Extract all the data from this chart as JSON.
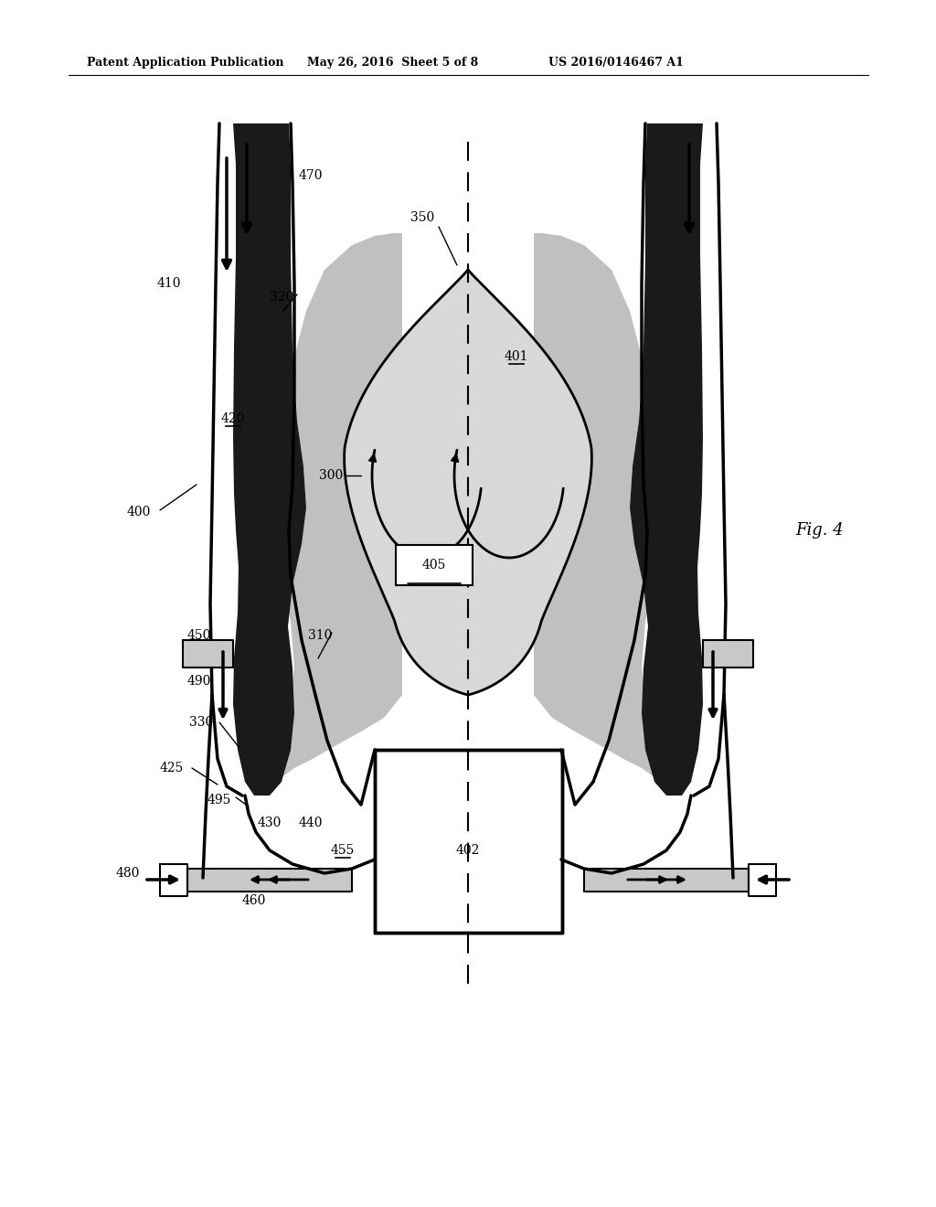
{
  "title_left": "Patent Application Publication",
  "title_mid": "May 26, 2016  Sheet 5 of 8",
  "title_right": "US 2016/0146467 A1",
  "fig_label": "Fig. 4",
  "bg_color": "#ffffff",
  "BLACK": "#000000",
  "DARK_GRAY": "#1a1a1a",
  "MID_GRAY": "#888888",
  "LIGHT_GRAY": "#c8c8c8",
  "WHITE": "#ffffff",
  "header_fontsize": 9,
  "label_fontsize": 10,
  "fig_fontsize": 13
}
